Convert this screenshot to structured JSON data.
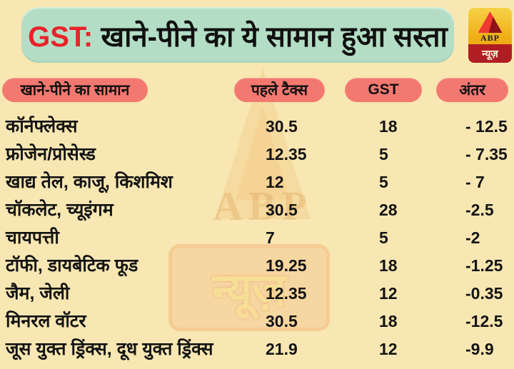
{
  "page": {
    "title_prefix": "GST:",
    "title_rest": " खाने-पीने का ये सामान हुआ सस्ता"
  },
  "logo": {
    "abp": "ABP",
    "news": "न्यूज़"
  },
  "watermark": {
    "abp": "ABP",
    "news": "न्यूज़"
  },
  "table": {
    "columns": [
      "खाने-पीने का सामान",
      "पहले टैक्स",
      "GST",
      "अंतर"
    ],
    "rows": [
      {
        "item": "कॉर्नफ्लेक्स",
        "prev_tax": "30.5",
        "gst": "18",
        "diff": "- 12.5"
      },
      {
        "item": "फ्रोजेन/प्रोसेस्ड",
        "prev_tax": "12.35",
        "gst": "5",
        "diff": "- 7.35"
      },
      {
        "item": "खाद्य तेल, काजू, किशमिश",
        "prev_tax": "12",
        "gst": "5",
        "diff": "- 7"
      },
      {
        "item": "चॉकलेट, च्यूइंगम",
        "prev_tax": "30.5",
        "gst": "28",
        "diff": "-2.5"
      },
      {
        "item": "चायपत्ती",
        "prev_tax": "7",
        "gst": "5",
        "diff": "-2"
      },
      {
        "item": "टॉफी, डायबेटिक फूड",
        "prev_tax": "19.25",
        "gst": "18",
        "diff": "-1.25"
      },
      {
        "item": "जैम, जेली",
        "prev_tax": "12.35",
        "gst": "12",
        "diff": "-0.35"
      },
      {
        "item": "मिनरल वॉटर",
        "prev_tax": "30.5",
        "gst": "18",
        "diff": "-12.5"
      },
      {
        "item": "जूस युक्त ड्रिंक्स, दूध युक्त ड्रिंक्स",
        "prev_tax": "21.9",
        "gst": "12",
        "diff": "-9.9"
      }
    ]
  },
  "chart_data": {
    "type": "table",
    "title": "GST: खाने-पीने का ये सामान हुआ सस्ता",
    "columns": [
      "खाने-पीने का सामान",
      "पहले टैक्स",
      "GST",
      "अंतर"
    ],
    "rows": [
      [
        "कॉर्नफ्लेक्स",
        30.5,
        18,
        -12.5
      ],
      [
        "फ्रोजेन/प्रोसेस्ड",
        12.35,
        5,
        -7.35
      ],
      [
        "खाद्य तेल, काजू, किशमिश",
        12,
        5,
        -7
      ],
      [
        "चॉकलेट, च्यूइंगम",
        30.5,
        28,
        -2.5
      ],
      [
        "चायपत्ती",
        7,
        5,
        -2
      ],
      [
        "टॉफी, डायबेटिक फूड",
        19.25,
        18,
        -1.25
      ],
      [
        "जैम, जेली",
        12.35,
        12,
        -0.35
      ],
      [
        "मिनरल वॉटर",
        30.5,
        18,
        -12.5
      ],
      [
        "जूस युक्त ड्रिंक्स, दूध युक्त ड्रिंक्स",
        21.9,
        12,
        -9.9
      ]
    ]
  },
  "colors": {
    "background": "#f8e7b2",
    "header_bg": "#b3dec5",
    "accent_red": "#e8232a",
    "pill_bg": "#f37970",
    "text": "#131313",
    "logo_gold": "#efae16",
    "logo_band_red": "#b01e24"
  }
}
